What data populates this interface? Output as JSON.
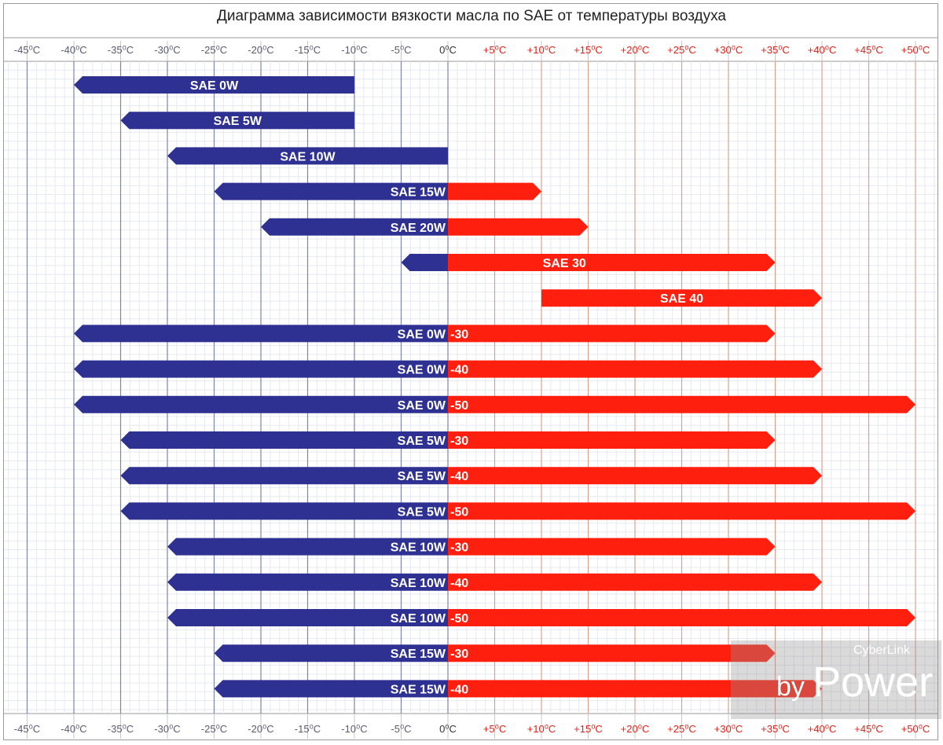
{
  "chart_data": {
    "type": "range-bar",
    "title": "Диаграмма зависимости вязкости масла по SAE от температуры воздуха",
    "x_ticks": [
      "-45⁰C",
      "-40⁰C",
      "-35⁰C",
      "-30⁰C",
      "-25⁰C",
      "-20⁰C",
      "-15⁰C",
      "-10⁰C",
      "-5⁰C",
      "0⁰C",
      "+5⁰C",
      "+10⁰C",
      "+15⁰C",
      "+20⁰C",
      "+25⁰C",
      "+30⁰C",
      "+35⁰C",
      "+40⁰C",
      "+45⁰C",
      "+50⁰C"
    ],
    "x_tick_values": [
      -45,
      -40,
      -35,
      -30,
      -25,
      -20,
      -15,
      -10,
      -5,
      0,
      5,
      10,
      15,
      20,
      25,
      30,
      35,
      40,
      45,
      50
    ],
    "xlim": [
      -47,
      52
    ],
    "grid": true,
    "colors": {
      "cold": "#2e3192",
      "warm": "#ff1f0f"
    },
    "bars": [
      {
        "label": "SAE 0W",
        "min": -40,
        "max": -10
      },
      {
        "label": "SAE 5W",
        "min": -35,
        "max": -10
      },
      {
        "label": "SAE 10W",
        "min": -30,
        "max": 0
      },
      {
        "label": "SAE 15W",
        "min": -25,
        "max": 10
      },
      {
        "label": "SAE 20W",
        "min": -20,
        "max": 15
      },
      {
        "label": "SAE 30",
        "min": -5,
        "max": 35
      },
      {
        "label": "SAE 40",
        "min": 10,
        "max": 40
      },
      {
        "label": "SAE 0W",
        "label2": "-30",
        "min": -40,
        "max": 35
      },
      {
        "label": "SAE 0W",
        "label2": "-40",
        "min": -40,
        "max": 40
      },
      {
        "label": "SAE 0W",
        "label2": "-50",
        "min": -40,
        "max": 50
      },
      {
        "label": "SAE 5W",
        "label2": "-30",
        "min": -35,
        "max": 35
      },
      {
        "label": "SAE 5W",
        "label2": "-40",
        "min": -35,
        "max": 40
      },
      {
        "label": "SAE 5W",
        "label2": "-50",
        "min": -35,
        "max": 50
      },
      {
        "label": "SAE 10W",
        "label2": "-30",
        "min": -30,
        "max": 35
      },
      {
        "label": "SAE 10W",
        "label2": "-40",
        "min": -30,
        "max": 40
      },
      {
        "label": "SAE 10W",
        "label2": "-50",
        "min": -30,
        "max": 50
      },
      {
        "label": "SAE 15W",
        "label2": "-30",
        "min": -25,
        "max": 35
      },
      {
        "label": "SAE 15W",
        "label2": "-40",
        "min": -25,
        "max": 40
      }
    ]
  },
  "watermark": {
    "brand": "CyberLink",
    "by": "by",
    "power": "Power"
  }
}
